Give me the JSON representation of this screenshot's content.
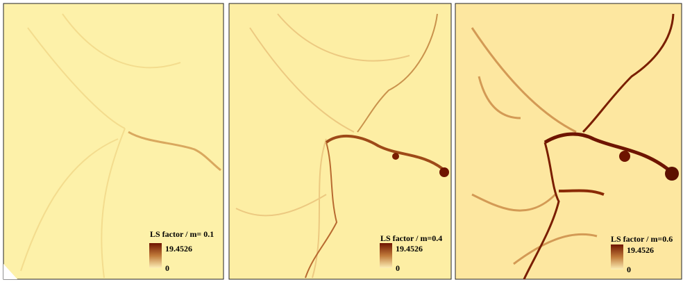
{
  "panels": [
    {
      "legend": {
        "title": "LS factor / m= 0.1",
        "max": "19.4526",
        "min": "0"
      }
    },
    {
      "legend": {
        "title": "LS factor / m=0.4",
        "max": "19.4526",
        "min": "0"
      }
    },
    {
      "legend": {
        "title": "LS factor / m=0.6",
        "max": "19.4526",
        "min": "0"
      }
    }
  ]
}
